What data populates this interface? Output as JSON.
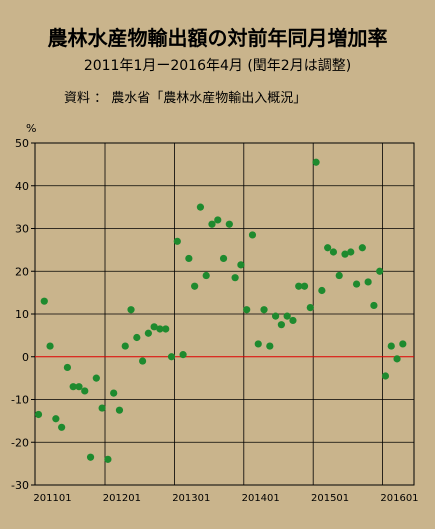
{
  "chart_data": {
    "type": "scatter",
    "title": "農林水産物輸出額の対前年同月増加率",
    "subtitle": "2011年1月ー2016年4月 (閏年2月は調整)",
    "source": "資料 ： 農水省「農林水産物輸出入概況」",
    "ylabel": "%",
    "ylim": [
      -30,
      50
    ],
    "yticks": [
      -30,
      -20,
      -10,
      0,
      10,
      20,
      30,
      40,
      50
    ],
    "x_tick_labels": [
      "201101",
      "201201",
      "201301",
      "201401",
      "201501",
      "201601"
    ],
    "grid": true,
    "zero_line_color": "#e00000",
    "point_color": "#1e8a2e",
    "series": [
      {
        "x": [
          "201101",
          "201102",
          "201103",
          "201104",
          "201105",
          "201106",
          "201107",
          "201108",
          "201109",
          "201110",
          "201111",
          "201112",
          "201201",
          "201202",
          "201203",
          "201204",
          "201205",
          "201206",
          "201207",
          "201208",
          "201209",
          "201210",
          "201211",
          "201212",
          "201301",
          "201302",
          "201303",
          "201304",
          "201305",
          "201306",
          "201307",
          "201308",
          "201309",
          "201310",
          "201311",
          "201312",
          "201401",
          "201402",
          "201403",
          "201404",
          "201405",
          "201406",
          "201407",
          "201408",
          "201409",
          "201410",
          "201411",
          "201412",
          "201501",
          "201502",
          "201503",
          "201504",
          "201505",
          "201506",
          "201507",
          "201508",
          "201509",
          "201510",
          "201511",
          "201512",
          "201601",
          "201602",
          "201603",
          "201604"
        ],
        "values": [
          -13.5,
          13,
          2.5,
          -14.5,
          -16.5,
          -2.5,
          -7,
          -7,
          -8,
          -23.5,
          -5,
          -12,
          -24,
          -8.5,
          -12.5,
          2.5,
          11,
          4.5,
          -1,
          5.5,
          7,
          6.5,
          6.5,
          0,
          27,
          0.5,
          23,
          16.5,
          35,
          19,
          31,
          32,
          23,
          31,
          18.5,
          21.5,
          11,
          28.5,
          3,
          11,
          2.5,
          9.5,
          7.5,
          9.5,
          8.5,
          16.5,
          16.5,
          11.5,
          45.5,
          15.5,
          25.5,
          24.5,
          19,
          24,
          24.5,
          17,
          25.5,
          17.5,
          12,
          20,
          -4.5,
          2.5,
          -0.5,
          3
        ]
      }
    ]
  }
}
